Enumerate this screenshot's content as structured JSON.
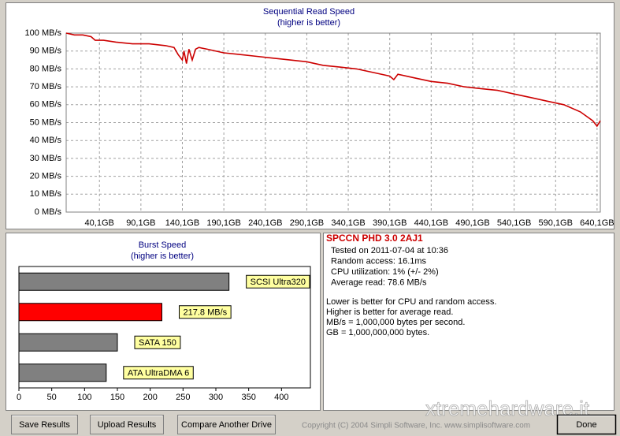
{
  "chart_data": [
    {
      "type": "line",
      "title": "Sequential Read Speed",
      "subtitle": "(higher is better)",
      "x": [
        0,
        10,
        20,
        30,
        35,
        45,
        60,
        80,
        100,
        120,
        130,
        135,
        140,
        142,
        145,
        148,
        152,
        156,
        160,
        170,
        190,
        210,
        230,
        250,
        270,
        290,
        310,
        330,
        350,
        370,
        390,
        395,
        400,
        420,
        440,
        460,
        480,
        500,
        520,
        540,
        560,
        580,
        600,
        620,
        635,
        640,
        644
      ],
      "values": [
        100,
        99,
        99,
        98,
        96,
        96,
        95,
        94,
        94,
        93,
        92,
        88,
        85,
        90,
        83,
        91,
        85,
        91,
        92,
        91,
        89,
        88,
        87,
        86,
        85,
        84,
        82,
        81,
        80,
        78,
        76,
        74,
        77,
        75,
        73,
        72,
        70,
        69,
        68,
        66,
        64,
        62,
        60,
        56,
        51,
        48,
        51
      ],
      "color": "#cc0000",
      "xlim": [
        0,
        644
      ],
      "ylim": [
        0,
        100
      ],
      "xticks": [
        {
          "value": 40.1,
          "label": "40,1GB"
        },
        {
          "value": 90.1,
          "label": "90,1GB"
        },
        {
          "value": 140.1,
          "label": "140,1GB"
        },
        {
          "value": 190.1,
          "label": "190,1GB"
        },
        {
          "value": 240.1,
          "label": "240,1GB"
        },
        {
          "value": 290.1,
          "label": "290,1GB"
        },
        {
          "value": 340.1,
          "label": "340,1GB"
        },
        {
          "value": 390.1,
          "label": "390,1GB"
        },
        {
          "value": 440.1,
          "label": "440,1GB"
        },
        {
          "value": 490.1,
          "label": "490,1GB"
        },
        {
          "value": 540.1,
          "label": "540,1GB"
        },
        {
          "value": 590.1,
          "label": "590,1GB"
        },
        {
          "value": 640.1,
          "label": "640,1GB"
        }
      ],
      "yticks": [
        {
          "value": 0,
          "label": "0 MB/s"
        },
        {
          "value": 10,
          "label": "10 MB/s"
        },
        {
          "value": 20,
          "label": "20 MB/s"
        },
        {
          "value": 30,
          "label": "30 MB/s"
        },
        {
          "value": 40,
          "label": "40 MB/s"
        },
        {
          "value": 50,
          "label": "50 MB/s"
        },
        {
          "value": 60,
          "label": "60 MB/s"
        },
        {
          "value": 70,
          "label": "70 MB/s"
        },
        {
          "value": 80,
          "label": "80 MB/s"
        },
        {
          "value": 90,
          "label": "90 MB/s"
        },
        {
          "value": 100,
          "label": "100 MB/s"
        }
      ],
      "grid": true
    },
    {
      "type": "barh",
      "title": "Burst Speed",
      "subtitle": "(higher is better)",
      "categories": [
        "SCSI Ultra320",
        null,
        "SATA 150",
        "ATA UltraDMA 6"
      ],
      "values": [
        320,
        217.8,
        150,
        133
      ],
      "value_labels": [
        null,
        "217.8 MB/s",
        null,
        null
      ],
      "colors": [
        "#808080",
        "#ff0000",
        "#808080",
        "#808080"
      ],
      "xlim": [
        0,
        444
      ],
      "xticks": [
        0,
        50,
        100,
        150,
        200,
        250,
        300,
        350,
        400
      ]
    }
  ],
  "info": {
    "title": "SPCCN PHD 3.0 2AJ1",
    "details": [
      "Tested on 2011-07-04 at 10:36",
      "Random access: 16.1ms",
      "CPU utilization: 1% (+/- 2%)",
      "Average read: 78.6 MB/s"
    ],
    "notes": [
      "Lower is better for CPU and random access.",
      "Higher is better for average read.",
      "MB/s = 1,000,000 bytes per second.",
      "GB = 1,000,000,000 bytes."
    ]
  },
  "buttons": [
    "Save Results",
    "Upload Results",
    "Compare Another Drive",
    "Done"
  ],
  "copyright": "Copyright (C) 2004 Simpli Software, Inc. www.simplisoftware.com",
  "watermark": "xtremehardware.it"
}
